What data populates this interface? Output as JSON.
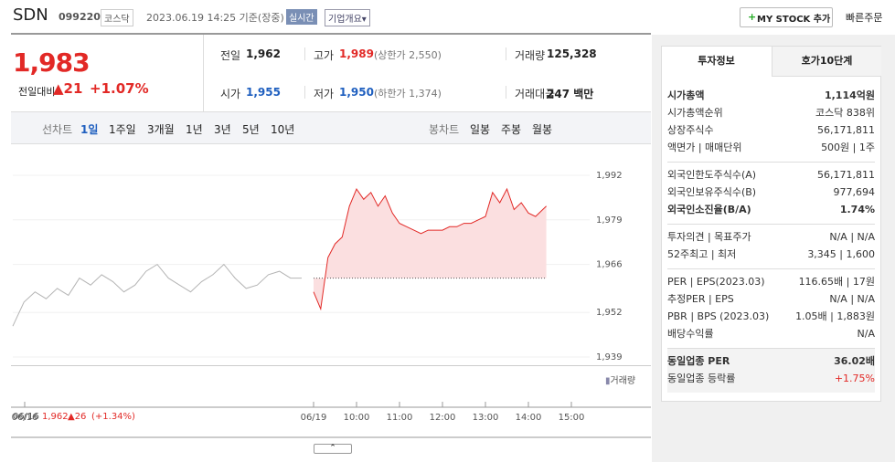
{
  "header": {
    "name": "SDN",
    "code": "099220",
    "market": "코스닥",
    "datetime": "2023.06.19 14:25 기준(장중)",
    "realtime": "실시간",
    "overview": "기업개요▾",
    "my_stock": "MY STOCK 추가",
    "quick_order": "빠른주문"
  },
  "price": {
    "current": "1,983",
    "change_label": "전일대비",
    "change": "▲21",
    "rate": "+1.07%"
  },
  "summary": [
    [
      {
        "label": "전일",
        "value": "1,962"
      },
      {
        "label": "고가",
        "value": "1,989",
        "note": "(상한가 2,550)"
      },
      {
        "label": "거래량",
        "value": "125,328"
      }
    ],
    [
      {
        "label": "시가",
        "value": "1,955"
      },
      {
        "label": "저가",
        "value": "1,950",
        "note": "(하한가 1,374)"
      },
      {
        "label": "거래대금",
        "value": "247 백만"
      }
    ]
  ],
  "period_tabs": {
    "line_label": "선차트",
    "items": [
      "1일",
      "1주일",
      "3개월",
      "1년",
      "3년",
      "5년",
      "10년"
    ],
    "candle_label": "봉차트",
    "candle_items": [
      "일봉",
      "주봉",
      "월봉"
    ]
  },
  "chart_data": {
    "type": "line",
    "ylim": [
      1939,
      1992
    ],
    "yticks": [
      {
        "value": 1939,
        "label": "1,939"
      },
      {
        "value": 1952,
        "label": "1,952"
      },
      {
        "value": 1966,
        "label": "1,966"
      },
      {
        "value": 1979,
        "label": "1,979"
      },
      {
        "value": 1992,
        "label": "1,992"
      }
    ],
    "baseline": 1962,
    "xtick_labels": [
      "06/16",
      "06/19",
      "10:00",
      "11:00",
      "12:00",
      "13:00",
      "14:00",
      "15:00"
    ],
    "series": [
      {
        "color": "#b4b4b4",
        "x": [
          "09:00",
          "09:15",
          "09:30",
          "09:45",
          "10:00",
          "10:15",
          "10:30",
          "10:45",
          "11:00",
          "11:15",
          "11:30",
          "11:45",
          "12:00",
          "12:15",
          "12:30",
          "12:45",
          "13:00",
          "13:15",
          "13:30",
          "13:45",
          "14:00",
          "14:15",
          "14:30",
          "14:45",
          "15:00",
          "15:15",
          "15:30"
        ],
        "values": [
          1948,
          1955,
          1958,
          1956,
          1959,
          1957,
          1962,
          1960,
          1963,
          1961,
          1958,
          1960,
          1964,
          1966,
          1962,
          1960,
          1958,
          1961,
          1963,
          1966,
          1962,
          1959,
          1960,
          1963,
          1964,
          1962,
          1962
        ]
      },
      {
        "color": "#e22926",
        "fill": "#fbdfe0",
        "x": [
          "09:00",
          "09:10",
          "09:20",
          "09:30",
          "09:40",
          "09:50",
          "10:00",
          "10:10",
          "10:20",
          "10:30",
          "10:40",
          "10:50",
          "11:00",
          "11:10",
          "11:20",
          "11:30",
          "11:40",
          "11:50",
          "12:00",
          "12:10",
          "12:20",
          "12:30",
          "12:40",
          "12:50",
          "13:00",
          "13:10",
          "13:20",
          "13:30",
          "13:40",
          "13:50",
          "14:00",
          "14:10",
          "14:20",
          "14:25"
        ],
        "values": [
          1958,
          1953,
          1968,
          1972,
          1974,
          1983,
          1988,
          1985,
          1987,
          1983,
          1986,
          1981,
          1978,
          1977,
          1976,
          1975,
          1976,
          1976,
          1976,
          1977,
          1977,
          1978,
          1978,
          1979,
          1980,
          1987,
          1984,
          1988,
          1982,
          1984,
          1981,
          1980,
          1982,
          1983
        ]
      }
    ]
  },
  "volume_legend": "거래량",
  "prev_day": {
    "date": "06/16",
    "close": "1,962",
    "change": "▲26",
    "rate": "(+1.34%)"
  },
  "info": {
    "tabs": [
      "투자정보",
      "호가10단계"
    ],
    "sections": [
      [
        {
          "label": "시가총액",
          "value": "1,114억원"
        },
        {
          "label": "시가총액순위",
          "value": "코스닥 838위"
        },
        {
          "label": "상장주식수",
          "value": "56,171,811"
        },
        {
          "label": "액면가 | 매매단위",
          "value": "500원 | 1주"
        }
      ],
      [
        {
          "label": "외국인한도주식수(A)",
          "value": "56,171,811"
        },
        {
          "label": "외국인보유주식수(B)",
          "value": "977,694"
        },
        {
          "label": "외국인소진율(B/A)",
          "value": "1.74%"
        }
      ],
      [
        {
          "label": "투자의견 | 목표주가",
          "value": "N/A | N/A"
        },
        {
          "label": "52주최고 | 최저",
          "value": "3,345 | 1,600"
        }
      ],
      [
        {
          "label": "PER | EPS(2023.03)",
          "value": "116.65배 | 17원"
        },
        {
          "label": "추정PER | EPS",
          "value": "N/A | N/A"
        },
        {
          "label": "PBR | BPS (2023.03)",
          "value": "1.05배 | 1,883원"
        },
        {
          "label": "배당수익률",
          "value": "N/A"
        }
      ],
      [
        {
          "label": "동일업종 PER",
          "value": "36.02배"
        },
        {
          "label": "동일업종 등락률",
          "value": "+1.75%"
        }
      ]
    ]
  }
}
